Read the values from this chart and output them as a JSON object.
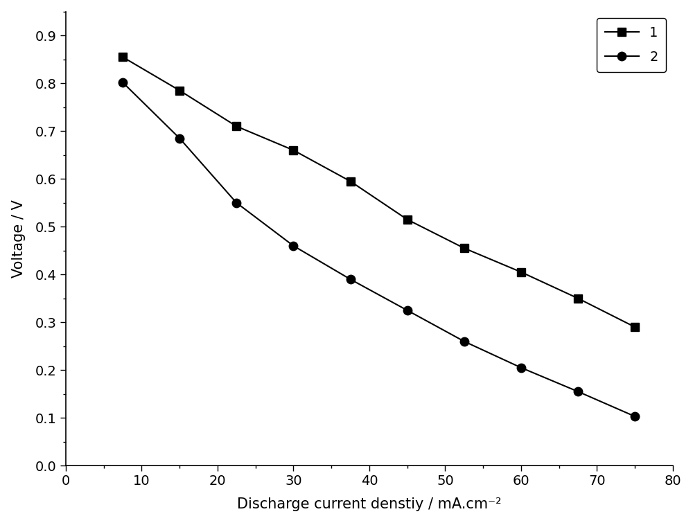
{
  "series1_x": [
    7.5,
    15,
    22.5,
    30,
    37.5,
    45,
    52.5,
    60,
    67.5,
    75
  ],
  "series1_y": [
    0.855,
    0.785,
    0.71,
    0.66,
    0.595,
    0.515,
    0.455,
    0.405,
    0.35,
    0.29
  ],
  "series2_x": [
    7.5,
    15,
    22.5,
    30,
    37.5,
    45,
    52.5,
    60,
    67.5,
    75
  ],
  "series2_y": [
    0.802,
    0.685,
    0.55,
    0.46,
    0.39,
    0.325,
    0.26,
    0.205,
    0.155,
    0.103
  ],
  "xlabel": "Discharge current denstiy / mA.cm⁻²",
  "ylabel": "Voltage / V",
  "xlim": [
    0,
    80
  ],
  "ylim": [
    0.0,
    0.95
  ],
  "xticks": [
    0,
    10,
    20,
    30,
    40,
    50,
    60,
    70,
    80
  ],
  "yticks": [
    0.0,
    0.1,
    0.2,
    0.3,
    0.4,
    0.5,
    0.6,
    0.7,
    0.8,
    0.9
  ],
  "legend_labels": [
    "1",
    "2"
  ],
  "line_color": "#000000",
  "marker1": "s",
  "marker2": "o",
  "marker_size": 9,
  "line_width": 1.5,
  "bg_color": "#ffffff",
  "xlabel_fontsize": 15,
  "ylabel_fontsize": 15,
  "tick_fontsize": 14,
  "legend_fontsize": 14
}
